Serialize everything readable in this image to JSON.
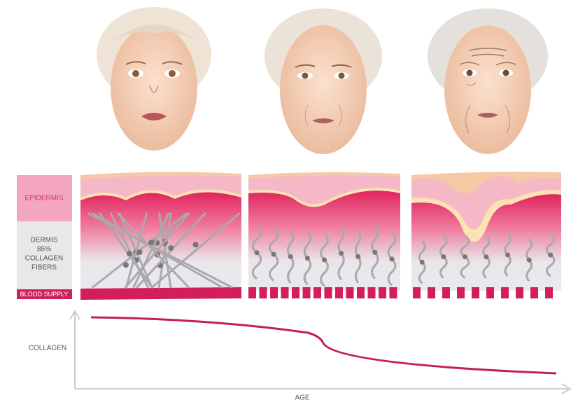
{
  "legend": {
    "epidermis": "EPIDERMIS",
    "dermis": [
      "DERMIS",
      "85%",
      "COLLAGEN",
      "FIBERS"
    ],
    "blood_supply": "BLOOD SUPPLY"
  },
  "graph": {
    "y_label": "COLLAGEN",
    "x_label": "AGE"
  }
}
